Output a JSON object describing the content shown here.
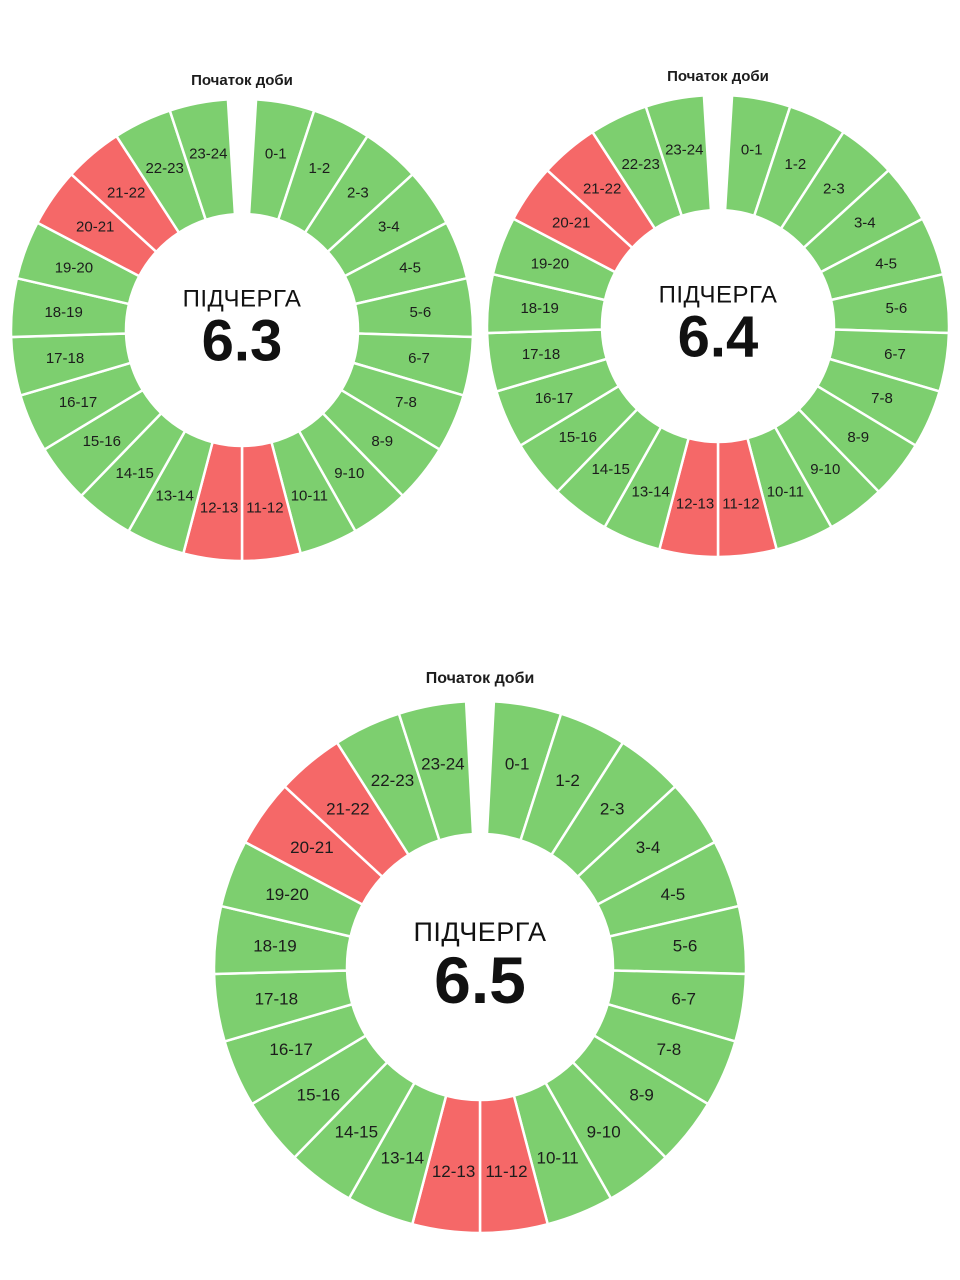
{
  "colors": {
    "on": "#7dcf6f",
    "off": "#f56868",
    "separator": "#ffffff",
    "text": "#1c1c1c"
  },
  "start_label": "Початок доби",
  "queue_word": "ПІДЧЕРГА",
  "chart_data": [
    {
      "type": "pie",
      "subtype": "24-hour donut schedule",
      "queue": "6.3",
      "slice_labels": [
        "0-1",
        "1-2",
        "2-3",
        "3-4",
        "4-5",
        "5-6",
        "6-7",
        "7-8",
        "8-9",
        "9-10",
        "10-11",
        "11-12",
        "12-13",
        "13-14",
        "14-15",
        "15-16",
        "16-17",
        "17-18",
        "18-19",
        "19-20",
        "20-21",
        "21-22",
        "22-23",
        "23-24"
      ],
      "status": [
        "on",
        "on",
        "on",
        "on",
        "on",
        "on",
        "on",
        "on",
        "on",
        "on",
        "on",
        "off",
        "off",
        "on",
        "on",
        "on",
        "on",
        "on",
        "on",
        "on",
        "off",
        "off",
        "on",
        "on"
      ]
    },
    {
      "type": "pie",
      "subtype": "24-hour donut schedule",
      "queue": "6.4",
      "slice_labels": [
        "0-1",
        "1-2",
        "2-3",
        "3-4",
        "4-5",
        "5-6",
        "6-7",
        "7-8",
        "8-9",
        "9-10",
        "10-11",
        "11-12",
        "12-13",
        "13-14",
        "14-15",
        "15-16",
        "16-17",
        "17-18",
        "18-19",
        "19-20",
        "20-21",
        "21-22",
        "22-23",
        "23-24"
      ],
      "status": [
        "on",
        "on",
        "on",
        "on",
        "on",
        "on",
        "on",
        "on",
        "on",
        "on",
        "on",
        "off",
        "off",
        "on",
        "on",
        "on",
        "on",
        "on",
        "on",
        "on",
        "off",
        "off",
        "on",
        "on"
      ]
    },
    {
      "type": "pie",
      "subtype": "24-hour donut schedule",
      "queue": "6.5",
      "slice_labels": [
        "0-1",
        "1-2",
        "2-3",
        "3-4",
        "4-5",
        "5-6",
        "6-7",
        "7-8",
        "8-9",
        "9-10",
        "10-11",
        "11-12",
        "12-13",
        "13-14",
        "14-15",
        "15-16",
        "16-17",
        "17-18",
        "18-19",
        "19-20",
        "20-21",
        "21-22",
        "22-23",
        "23-24"
      ],
      "status": [
        "on",
        "on",
        "on",
        "on",
        "on",
        "on",
        "on",
        "on",
        "on",
        "on",
        "on",
        "off",
        "off",
        "on",
        "on",
        "on",
        "on",
        "on",
        "on",
        "on",
        "off",
        "off",
        "on",
        "on"
      ]
    }
  ]
}
